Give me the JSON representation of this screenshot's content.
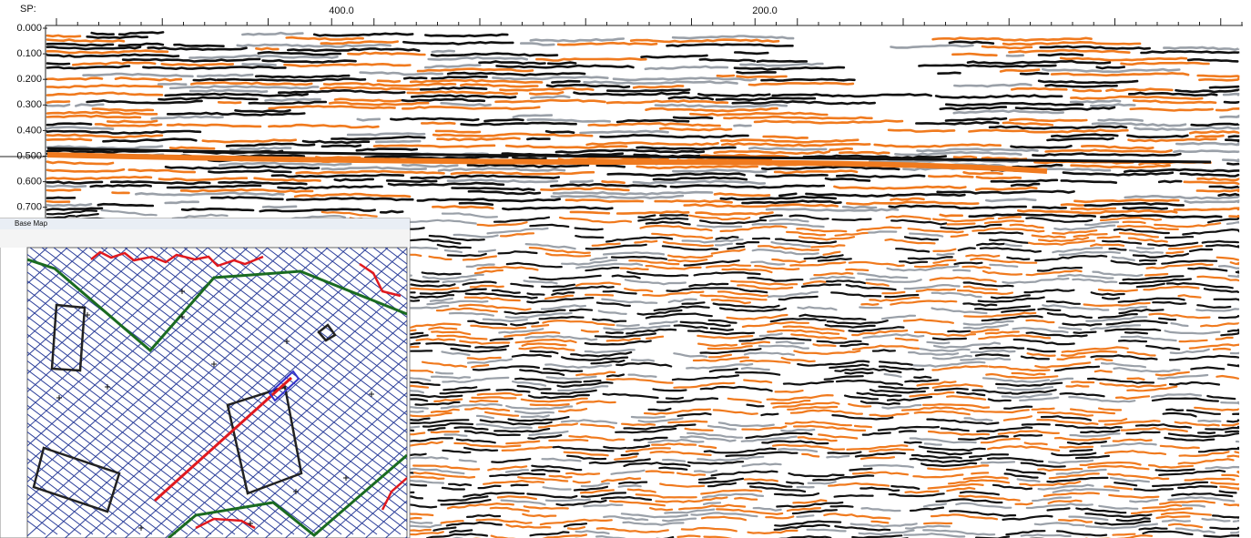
{
  "section": {
    "sp_label": "SP:",
    "sp_ticks": [
      "400.0",
      "200.0"
    ],
    "time_ticks": [
      "0.000",
      "0.100",
      "0.200",
      "0.300",
      "0.400",
      "0.500",
      "0.600",
      "0.700"
    ]
  },
  "base_map": {
    "title": "Base Map"
  }
}
